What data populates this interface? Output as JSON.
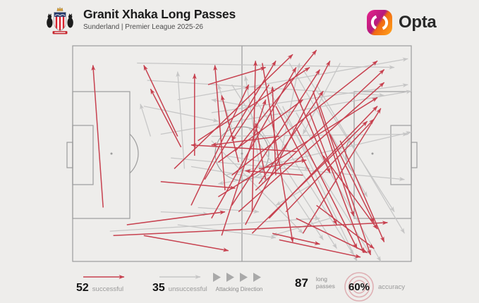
{
  "header": {
    "title": "Granit Xhaka Long Passes",
    "subtitle": "Sunderland | Premier League 2025-26",
    "brand": "Opta"
  },
  "legend": {
    "successful": {
      "count": "52",
      "label": "successful"
    },
    "unsuccessful": {
      "count": "35",
      "label": "unsuccessful"
    },
    "attacking_direction_label": "Attacking Direction",
    "total": {
      "count": "87",
      "label_line1": "long",
      "label_line2": "passes"
    },
    "accuracy": {
      "value": "60%",
      "label": "accuracy"
    }
  },
  "colors": {
    "background": "#eeedeb",
    "pitch_line": "#9c9c9c",
    "successful": "#c7414f",
    "unsuccessful": "#c6c6c6",
    "direction_triangle": "#a9a9a9",
    "accuracy_ring": "#dfb0b4",
    "text_dark": "#151515",
    "text_gray": "#9a9a9a"
  },
  "chart_data": {
    "type": "pass_map",
    "title": "Granit Xhaka Long Passes",
    "player": "Granit Xhaka",
    "team": "Sunderland",
    "competition": "Premier League 2025-26",
    "attacking_direction": "left-to-right",
    "totals": {
      "successful": 52,
      "unsuccessful": 35,
      "total_long_passes": 87,
      "accuracy_pct": 60
    },
    "coordinate_system": "percent of pitch; [x1,y1,x2,y2]; x: 0 own goal line -> 100 opposition goal line; y: 0 top touchline -> 100 bottom touchline; arrowhead at (x2,y2)",
    "successful_passes": [
      [
        9,
        75,
        6,
        9
      ],
      [
        31,
        42,
        21,
        9
      ],
      [
        32,
        47,
        23,
        20
      ],
      [
        36,
        51,
        36,
        13
      ],
      [
        45,
        67,
        42,
        9
      ],
      [
        53,
        77,
        54,
        7
      ],
      [
        60,
        60,
        59,
        19
      ],
      [
        49,
        54,
        44,
        23
      ],
      [
        57,
        62,
        54,
        36
      ],
      [
        30,
        57,
        65,
        4
      ],
      [
        39,
        62,
        60,
        7
      ],
      [
        37,
        44,
        70,
        10
      ],
      [
        47,
        74,
        73,
        11
      ],
      [
        51,
        83,
        76,
        7
      ],
      [
        43,
        54,
        68,
        25
      ],
      [
        55,
        64,
        74,
        21
      ],
      [
        47,
        60,
        90,
        7
      ],
      [
        54,
        67,
        92,
        11
      ],
      [
        49,
        77,
        92,
        17
      ],
      [
        43,
        70,
        90,
        24
      ],
      [
        58,
        80,
        90,
        28
      ],
      [
        53,
        87,
        87,
        35
      ],
      [
        63,
        77,
        89,
        34
      ],
      [
        68,
        87,
        91,
        29
      ],
      [
        60,
        28,
        78,
        83
      ],
      [
        66,
        38,
        84,
        94
      ],
      [
        70,
        31,
        86,
        96
      ],
      [
        73,
        28,
        88,
        97
      ],
      [
        76,
        41,
        89,
        82
      ],
      [
        74,
        51,
        90,
        85
      ],
      [
        79,
        44,
        92,
        91
      ],
      [
        71,
        21,
        83,
        79
      ],
      [
        64,
        15,
        76,
        59
      ],
      [
        56,
        8,
        65,
        91
      ],
      [
        68,
        60,
        51,
        58
      ],
      [
        66,
        49,
        35,
        46
      ],
      [
        61,
        42,
        41,
        46
      ],
      [
        58,
        18,
        47,
        44
      ],
      [
        21,
        88,
        46,
        95
      ],
      [
        16,
        83,
        45,
        77
      ],
      [
        26,
        63,
        48,
        66
      ],
      [
        12,
        88,
        93,
        82
      ],
      [
        61,
        90,
        85,
        98
      ],
      [
        66,
        80,
        87,
        96
      ],
      [
        72,
        74,
        89,
        94
      ],
      [
        48,
        49,
        72,
        2
      ],
      [
        41,
        80,
        66,
        10
      ],
      [
        35,
        74,
        52,
        18
      ],
      [
        44,
        88,
        57,
        25
      ],
      [
        55,
        57,
        69,
        53
      ],
      [
        59,
        87,
        73,
        92
      ],
      [
        40,
        18,
        57,
        10
      ]
    ],
    "unsuccessful_passes": [
      [
        31,
        25,
        99,
        6
      ],
      [
        41,
        31,
        99,
        18
      ],
      [
        26,
        41,
        100,
        21
      ],
      [
        45,
        60,
        100,
        40
      ],
      [
        19,
        8,
        95,
        10
      ],
      [
        22,
        16,
        92,
        23
      ],
      [
        41,
        42,
        99,
        41
      ],
      [
        29,
        52,
        98,
        62
      ],
      [
        47,
        18,
        78,
        94
      ],
      [
        54,
        25,
        83,
        97
      ],
      [
        58,
        21,
        88,
        97
      ],
      [
        62,
        28,
        84,
        100
      ],
      [
        66,
        31,
        91,
        100
      ],
      [
        52,
        38,
        74,
        90
      ],
      [
        41,
        44,
        68,
        87
      ],
      [
        68,
        11,
        95,
        77
      ],
      [
        72,
        18,
        98,
        87
      ],
      [
        64,
        8,
        87,
        70
      ],
      [
        37,
        75,
        55,
        77
      ],
      [
        26,
        77,
        40,
        78
      ],
      [
        31,
        83,
        60,
        89
      ],
      [
        11,
        86,
        73,
        80
      ],
      [
        35,
        56,
        58,
        62
      ],
      [
        45,
        51,
        70,
        57
      ],
      [
        21,
        28,
        43,
        35
      ],
      [
        23,
        42,
        20,
        27
      ],
      [
        56,
        64,
        51,
        14
      ],
      [
        61,
        54,
        67,
        8
      ],
      [
        47,
        38,
        43,
        18
      ],
      [
        33,
        57,
        31,
        12
      ],
      [
        76,
        80,
        59,
        88
      ],
      [
        58,
        60,
        43,
        64
      ],
      [
        52,
        28,
        41,
        25
      ],
      [
        71,
        64,
        60,
        74
      ],
      [
        79,
        8,
        68,
        41
      ]
    ]
  }
}
